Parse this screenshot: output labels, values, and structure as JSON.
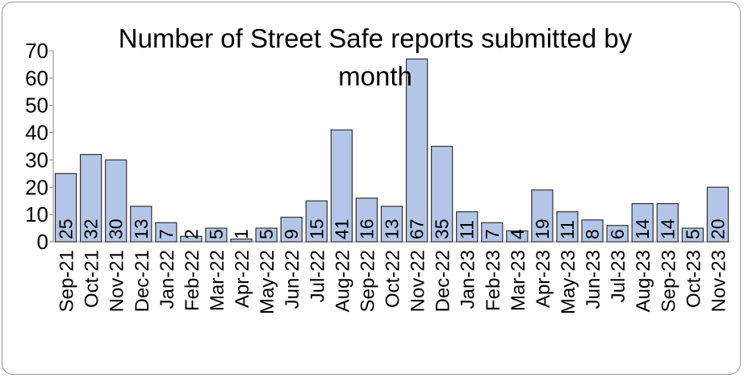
{
  "chart_data": {
    "type": "bar",
    "title": "Number of Street Safe reports submitted by month",
    "categories": [
      "Sep-21",
      "Oct-21",
      "Nov-21",
      "Dec-21",
      "Jan-22",
      "Feb-22",
      "Mar-22",
      "Apr-22",
      "May-22",
      "Jun-22",
      "Jul-22",
      "Aug-22",
      "Sep-22",
      "Oct-22",
      "Nov-22",
      "Dec-22",
      "Jan-23",
      "Feb-23",
      "Mar-23",
      "Apr-23",
      "May-23",
      "Jun-23",
      "Jul-23",
      "Aug-23",
      "Sep-23",
      "Oct-23",
      "Nov-23"
    ],
    "values": [
      25,
      32,
      30,
      13,
      7,
      2,
      5,
      1,
      5,
      9,
      15,
      41,
      16,
      13,
      67,
      35,
      11,
      7,
      4,
      19,
      11,
      8,
      6,
      14,
      14,
      5,
      20
    ],
    "color": "#b3c6e7",
    "ylim": [
      0,
      70
    ],
    "yticks": [
      0,
      10,
      20,
      30,
      40,
      50,
      60,
      70
    ],
    "grid": false
  }
}
